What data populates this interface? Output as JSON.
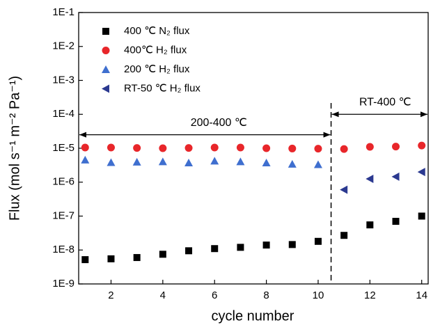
{
  "chart_data": {
    "type": "scatter",
    "x_label": "cycle number",
    "y_label": "Flux (mol s⁻¹ m⁻² Pa⁻¹)",
    "log_y": true,
    "xlim": [
      0.75,
      14.25
    ],
    "xticks": [
      2,
      4,
      6,
      8,
      10,
      12,
      14
    ],
    "ylim": [
      1e-09,
      0.1
    ],
    "yticks": [
      {
        "value": 1e-09,
        "label": "1E-9"
      },
      {
        "value": 1e-08,
        "label": "1E-8"
      },
      {
        "value": 1e-07,
        "label": "1E-7"
      },
      {
        "value": 1e-06,
        "label": "1E-6"
      },
      {
        "value": 1e-05,
        "label": "1E-5"
      },
      {
        "value": 0.0001,
        "label": "1E-4"
      },
      {
        "value": 0.001,
        "label": "1E-3"
      },
      {
        "value": 0.01,
        "label": "1E-2"
      },
      {
        "value": 0.1,
        "label": "1E-1"
      }
    ],
    "legend": "upper left",
    "series": [
      {
        "name": "400 ℃ N₂ flux",
        "color": "#000000",
        "marker": "square",
        "x": [
          1,
          2,
          3,
          4,
          5,
          6,
          7,
          8,
          9,
          10,
          11,
          12,
          13,
          14
        ],
        "values": [
          5.2e-09,
          5.5e-09,
          6e-09,
          7.5e-09,
          9.5e-09,
          1.1e-08,
          1.2e-08,
          1.4e-08,
          1.45e-08,
          1.8e-08,
          2.7e-08,
          5.5e-08,
          7e-08,
          1e-07
        ]
      },
      {
        "name": "400℃ H₂ flux",
        "color": "#e8262a",
        "marker": "circle",
        "x": [
          1,
          2,
          3,
          4,
          5,
          6,
          7,
          8,
          9,
          10,
          11,
          12,
          13,
          14
        ],
        "values": [
          1.05e-05,
          1.05e-05,
          1.02e-05,
          1e-05,
          1.02e-05,
          1.05e-05,
          1.05e-05,
          1e-05,
          9.8e-06,
          9.7e-06,
          9.5e-06,
          1.1e-05,
          1.12e-05,
          1.2e-05
        ]
      },
      {
        "name": "200 ℃ H₂ flux",
        "color": "#3f6fcf",
        "marker": "triangle-up",
        "x": [
          1,
          2,
          3,
          4,
          5,
          6,
          7,
          8,
          9,
          10
        ],
        "values": [
          4.5e-06,
          3.8e-06,
          3.9e-06,
          4e-06,
          3.7e-06,
          4.2e-06,
          4e-06,
          3.7e-06,
          3.4e-06,
          3.3e-06
        ]
      },
      {
        "name": "RT-50 ℃ H₂ flux",
        "color": "#2b3990",
        "marker": "triangle-left",
        "x": [
          11,
          12,
          13,
          14
        ],
        "values": [
          6e-07,
          1.25e-06,
          1.45e-06,
          2e-06
        ]
      }
    ],
    "dividers": [
      10.5
    ],
    "annotations": [
      {
        "text": "200-400 ℃",
        "x": [
          0.75,
          10.5
        ],
        "y": 2.5e-05
      },
      {
        "text": "RT-400 ℃",
        "x": [
          10.5,
          14.25
        ],
        "y": 0.0001
      }
    ]
  }
}
